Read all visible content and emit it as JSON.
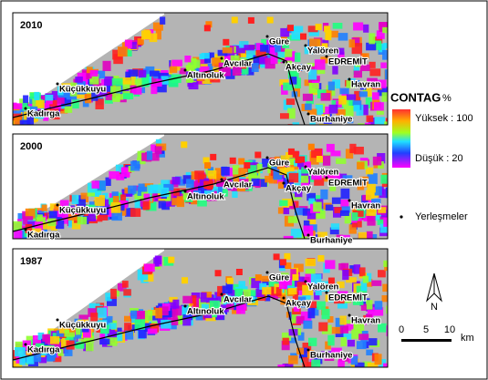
{
  "panels": [
    {
      "year": "2010",
      "places": [
        "Güre",
        "Yalören",
        "EDREMİT",
        "Akçay",
        "Avcılar",
        "Altınoluk",
        "Küçükkuyu",
        "Havran",
        "Kadırga",
        "Burhaniye"
      ]
    },
    {
      "year": "2000",
      "places": [
        "Güre",
        "Yalören",
        "EDREMİT",
        "Akçay",
        "Avcılar",
        "Altınoluk",
        "Küçükkuyu",
        "Havran",
        "Kadırga",
        "Burhaniye"
      ]
    },
    {
      "year": "1987",
      "places": [
        "Güre",
        "Yalören",
        "EDREMİT",
        "Akçay",
        "Avcılar",
        "Altınoluk",
        "Küçükkuyu",
        "Havran",
        "Kadırga",
        "Burhaniye"
      ]
    }
  ],
  "legend": {
    "title": "CONTAG",
    "unit": "%",
    "high": "Yüksek : 100",
    "low": "Düşük : 20",
    "settlements": "Yerleşmeler"
  },
  "scale": {
    "north": "N",
    "ticks": [
      "0",
      "5",
      "10"
    ],
    "unit": "km"
  }
}
